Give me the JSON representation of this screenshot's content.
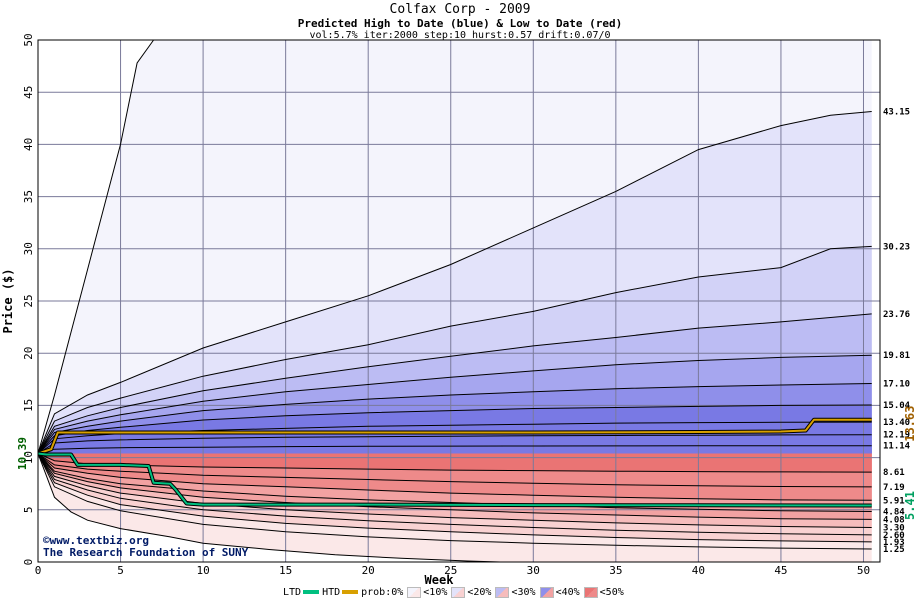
{
  "title": "Colfax Corp - 2009",
  "subtitle": "Predicted High to Date (blue) &  Low to Date (red)",
  "params": "vol:5.7% iter:2000 step:10 hurst:0.57 drift:0.07/0",
  "credit": {
    "line1": "©www.textbiz.org",
    "line2": "The Research Foundation of SUNY"
  },
  "legend": {
    "ltd": "LTD",
    "htd": "HTD",
    "prob": "prob:0%",
    "bins": [
      "<10%",
      "<20%",
      "<30%",
      "<40%",
      "<50%"
    ],
    "ltd_color": "#00c080",
    "htd_color": "#d8a000"
  },
  "colors": {
    "blue_bands": [
      "#f4f4fc",
      "#e3e3fa",
      "#d2d2f7",
      "#bcbcf3",
      "#a6a6ef",
      "#8f8fea",
      "#7979e4"
    ],
    "red_bands": [
      "#fbe8e8",
      "#f9d2d2",
      "#f6bcbc",
      "#f2a2a2",
      "#ee8a8a",
      "#ea7474"
    ],
    "start_label": "#006000",
    "htd_label": "#a06000",
    "ltd_label": "#00a060"
  },
  "chart_data": {
    "type": "area",
    "title": "Colfax Corp - 2009",
    "subtitle": "Predicted High to Date (blue) &  Low to Date (red)",
    "xlabel": "Week",
    "ylabel": "Price ($)",
    "xlim": [
      0,
      51
    ],
    "ylim": [
      0,
      50
    ],
    "xticks": [
      0,
      5,
      10,
      15,
      20,
      25,
      30,
      35,
      40,
      45,
      50
    ],
    "yticks": [
      0,
      5,
      10,
      15,
      20,
      25,
      30,
      35,
      40,
      45,
      50
    ],
    "grid": true,
    "start_price": 10.39,
    "start_label": "10.39",
    "high_quantiles": [
      {
        "label": "43.15",
        "end": 43.15,
        "points": [
          [
            0,
            10.39
          ],
          [
            1,
            14.2
          ],
          [
            3,
            16.0
          ],
          [
            5,
            17.2
          ],
          [
            10,
            20.5
          ],
          [
            15,
            23.0
          ],
          [
            20,
            25.5
          ],
          [
            25,
            28.5
          ],
          [
            30,
            32.0
          ],
          [
            35,
            35.5
          ],
          [
            40,
            39.5
          ],
          [
            45,
            41.8
          ],
          [
            48,
            42.8
          ],
          [
            50.5,
            43.15
          ]
        ]
      },
      {
        "label": "30.23",
        "end": 30.23,
        "points": [
          [
            0,
            10.39
          ],
          [
            1,
            13.5
          ],
          [
            3,
            14.8
          ],
          [
            5,
            15.7
          ],
          [
            10,
            17.8
          ],
          [
            15,
            19.4
          ],
          [
            20,
            20.8
          ],
          [
            25,
            22.6
          ],
          [
            30,
            24.0
          ],
          [
            35,
            25.8
          ],
          [
            40,
            27.3
          ],
          [
            45,
            28.2
          ],
          [
            48,
            30.0
          ],
          [
            50.5,
            30.23
          ]
        ]
      },
      {
        "label": "23.76",
        "end": 23.76,
        "points": [
          [
            0,
            10.39
          ],
          [
            1,
            13.0
          ],
          [
            3,
            14.0
          ],
          [
            5,
            14.8
          ],
          [
            10,
            16.4
          ],
          [
            15,
            17.6
          ],
          [
            20,
            18.7
          ],
          [
            25,
            19.7
          ],
          [
            30,
            20.7
          ],
          [
            35,
            21.5
          ],
          [
            40,
            22.4
          ],
          [
            45,
            23.0
          ],
          [
            50.5,
            23.76
          ]
        ]
      },
      {
        "label": "19.81",
        "end": 19.81,
        "points": [
          [
            0,
            10.39
          ],
          [
            1,
            12.7
          ],
          [
            3,
            13.5
          ],
          [
            5,
            14.1
          ],
          [
            10,
            15.4
          ],
          [
            15,
            16.3
          ],
          [
            20,
            17.0
          ],
          [
            25,
            17.7
          ],
          [
            30,
            18.3
          ],
          [
            35,
            18.9
          ],
          [
            40,
            19.3
          ],
          [
            45,
            19.6
          ],
          [
            50.5,
            19.81
          ]
        ]
      },
      {
        "label": "17.10",
        "end": 17.1,
        "points": [
          [
            0,
            10.39
          ],
          [
            1,
            12.4
          ],
          [
            3,
            13.0
          ],
          [
            5,
            13.5
          ],
          [
            10,
            14.5
          ],
          [
            15,
            15.1
          ],
          [
            20,
            15.6
          ],
          [
            25,
            16.0
          ],
          [
            30,
            16.3
          ],
          [
            35,
            16.6
          ],
          [
            40,
            16.8
          ],
          [
            45,
            16.95
          ],
          [
            50.5,
            17.1
          ]
        ]
      },
      {
        "label": "15.04",
        "end": 15.04,
        "points": [
          [
            0,
            10.39
          ],
          [
            1,
            12.1
          ],
          [
            3,
            12.6
          ],
          [
            5,
            12.9
          ],
          [
            10,
            13.6
          ],
          [
            15,
            14.0
          ],
          [
            20,
            14.3
          ],
          [
            25,
            14.5
          ],
          [
            30,
            14.7
          ],
          [
            35,
            14.8
          ],
          [
            40,
            14.9
          ],
          [
            45,
            15.0
          ],
          [
            50.5,
            15.04
          ]
        ]
      },
      {
        "label": "13.40",
        "end": 13.4,
        "points": [
          [
            0,
            10.39
          ],
          [
            1,
            11.8
          ],
          [
            3,
            12.1
          ],
          [
            5,
            12.3
          ],
          [
            10,
            12.6
          ],
          [
            15,
            12.8
          ],
          [
            20,
            13.0
          ],
          [
            25,
            13.1
          ],
          [
            30,
            13.2
          ],
          [
            35,
            13.3
          ],
          [
            40,
            13.35
          ],
          [
            45,
            13.38
          ],
          [
            50.5,
            13.4
          ]
        ]
      },
      {
        "label": "12.19",
        "end": 12.19,
        "points": [
          [
            0,
            10.39
          ],
          [
            1,
            11.4
          ],
          [
            3,
            11.6
          ],
          [
            5,
            11.7
          ],
          [
            10,
            11.85
          ],
          [
            15,
            11.95
          ],
          [
            20,
            12.0
          ],
          [
            25,
            12.05
          ],
          [
            30,
            12.1
          ],
          [
            35,
            12.12
          ],
          [
            40,
            12.15
          ],
          [
            45,
            12.17
          ],
          [
            50.5,
            12.19
          ]
        ]
      },
      {
        "label": "11.14",
        "end": 11.14,
        "points": [
          [
            0,
            10.39
          ],
          [
            1,
            10.8
          ],
          [
            3,
            10.9
          ],
          [
            5,
            10.95
          ],
          [
            10,
            11.0
          ],
          [
            15,
            11.05
          ],
          [
            20,
            11.08
          ],
          [
            25,
            11.1
          ],
          [
            30,
            11.11
          ],
          [
            35,
            11.12
          ],
          [
            40,
            11.13
          ],
          [
            45,
            11.14
          ],
          [
            50.5,
            11.14
          ]
        ]
      }
    ],
    "max_curve": {
      "points": [
        [
          0,
          10.39
        ],
        [
          1,
          16.0
        ],
        [
          2,
          22.0
        ],
        [
          3,
          28.0
        ],
        [
          4,
          34.0
        ],
        [
          5,
          40.0
        ],
        [
          6,
          47.8
        ],
        [
          7,
          50.0
        ]
      ]
    },
    "low_quantiles": [
      {
        "label": "8.61",
        "end": 8.61,
        "points": [
          [
            0,
            10.39
          ],
          [
            1,
            9.7
          ],
          [
            3,
            9.4
          ],
          [
            5,
            9.3
          ],
          [
            10,
            9.1
          ],
          [
            15,
            9.0
          ],
          [
            20,
            8.9
          ],
          [
            25,
            8.8
          ],
          [
            30,
            8.75
          ],
          [
            35,
            8.7
          ],
          [
            40,
            8.66
          ],
          [
            45,
            8.63
          ],
          [
            50.5,
            8.61
          ]
        ]
      },
      {
        "label": "7.19",
        "end": 7.19,
        "points": [
          [
            0,
            10.39
          ],
          [
            1,
            9.3
          ],
          [
            3,
            8.9
          ],
          [
            5,
            8.7
          ],
          [
            10,
            8.3
          ],
          [
            15,
            8.1
          ],
          [
            20,
            7.9
          ],
          [
            25,
            7.7
          ],
          [
            30,
            7.55
          ],
          [
            35,
            7.4
          ],
          [
            40,
            7.3
          ],
          [
            45,
            7.23
          ],
          [
            50.5,
            7.19
          ]
        ]
      },
      {
        "label": "5.91",
        "end": 5.91,
        "points": [
          [
            0,
            10.39
          ],
          [
            1,
            9.0
          ],
          [
            3,
            8.5
          ],
          [
            5,
            8.1
          ],
          [
            10,
            7.5
          ],
          [
            15,
            7.2
          ],
          [
            20,
            6.9
          ],
          [
            25,
            6.6
          ],
          [
            30,
            6.4
          ],
          [
            35,
            6.2
          ],
          [
            40,
            6.05
          ],
          [
            45,
            5.95
          ],
          [
            50.5,
            5.91
          ]
        ]
      },
      {
        "label": "4.84",
        "end": 4.84,
        "points": [
          [
            0,
            10.39
          ],
          [
            1,
            8.7
          ],
          [
            3,
            8.0
          ],
          [
            5,
            7.5
          ],
          [
            10,
            6.8
          ],
          [
            15,
            6.3
          ],
          [
            20,
            5.95
          ],
          [
            25,
            5.7
          ],
          [
            30,
            5.45
          ],
          [
            35,
            5.2
          ],
          [
            40,
            5.05
          ],
          [
            45,
            4.9
          ],
          [
            50.5,
            4.84
          ]
        ]
      },
      {
        "label": "4.08",
        "end": 4.08,
        "points": [
          [
            0,
            10.39
          ],
          [
            1,
            8.5
          ],
          [
            3,
            7.7
          ],
          [
            5,
            7.1
          ],
          [
            10,
            6.2
          ],
          [
            15,
            5.7
          ],
          [
            20,
            5.3
          ],
          [
            25,
            5.0
          ],
          [
            30,
            4.7
          ],
          [
            35,
            4.5
          ],
          [
            40,
            4.3
          ],
          [
            45,
            4.15
          ],
          [
            50.5,
            4.08
          ]
        ]
      },
      {
        "label": "3.30",
        "end": 3.3,
        "points": [
          [
            0,
            10.39
          ],
          [
            1,
            8.2
          ],
          [
            3,
            7.3
          ],
          [
            5,
            6.6
          ],
          [
            10,
            5.6
          ],
          [
            15,
            5.0
          ],
          [
            20,
            4.6
          ],
          [
            25,
            4.25
          ],
          [
            30,
            4.0
          ],
          [
            35,
            3.75
          ],
          [
            40,
            3.55
          ],
          [
            45,
            3.4
          ],
          [
            50.5,
            3.3
          ]
        ]
      },
      {
        "label": "2.60",
        "end": 2.6,
        "points": [
          [
            0,
            10.39
          ],
          [
            1,
            7.9
          ],
          [
            3,
            6.9
          ],
          [
            5,
            6.1
          ],
          [
            10,
            5.0
          ],
          [
            15,
            4.4
          ],
          [
            20,
            3.95
          ],
          [
            25,
            3.6
          ],
          [
            30,
            3.3
          ],
          [
            35,
            3.05
          ],
          [
            40,
            2.85
          ],
          [
            45,
            2.7
          ],
          [
            50.5,
            2.6
          ]
        ]
      },
      {
        "label": "1.93",
        "end": 1.93,
        "points": [
          [
            0,
            10.39
          ],
          [
            1,
            7.6
          ],
          [
            3,
            6.4
          ],
          [
            5,
            5.5
          ],
          [
            10,
            4.4
          ],
          [
            15,
            3.7
          ],
          [
            20,
            3.25
          ],
          [
            25,
            2.9
          ],
          [
            30,
            2.6
          ],
          [
            35,
            2.35
          ],
          [
            40,
            2.15
          ],
          [
            45,
            2.02
          ],
          [
            50.5,
            1.93
          ]
        ]
      },
      {
        "label": "1.25",
        "end": 1.25,
        "points": [
          [
            0,
            10.39
          ],
          [
            1,
            7.2
          ],
          [
            3,
            5.8
          ],
          [
            5,
            4.9
          ],
          [
            10,
            3.6
          ],
          [
            15,
            2.9
          ],
          [
            20,
            2.4
          ],
          [
            25,
            2.05
          ],
          [
            30,
            1.8
          ],
          [
            35,
            1.6
          ],
          [
            40,
            1.45
          ],
          [
            45,
            1.33
          ],
          [
            50.5,
            1.25
          ]
        ]
      }
    ],
    "min_curve": {
      "points": [
        [
          0,
          10.39
        ],
        [
          1,
          6.2
        ],
        [
          2,
          4.8
        ],
        [
          3,
          4.0
        ],
        [
          5,
          3.2
        ],
        [
          8,
          2.4
        ],
        [
          10,
          1.8
        ],
        [
          14,
          1.2
        ],
        [
          18,
          0.7
        ],
        [
          22,
          0.35
        ],
        [
          26,
          0.1
        ],
        [
          28,
          0.0
        ]
      ]
    },
    "htd": {
      "name": "HTD",
      "end": 13.63,
      "end_label": "13.63",
      "points": [
        [
          0,
          10.39
        ],
        [
          0.8,
          10.8
        ],
        [
          1.2,
          12.4
        ],
        [
          2,
          12.4
        ],
        [
          10,
          12.4
        ],
        [
          20,
          12.4
        ],
        [
          30,
          12.4
        ],
        [
          40,
          12.45
        ],
        [
          45,
          12.5
        ],
        [
          46.5,
          12.6
        ],
        [
          47,
          13.63
        ],
        [
          50.5,
          13.63
        ]
      ]
    },
    "ltd": {
      "name": "LTD",
      "end": 5.41,
      "end_label": "5.41",
      "points": [
        [
          0,
          10.39
        ],
        [
          0.5,
          10.3
        ],
        [
          2,
          10.3
        ],
        [
          2.4,
          9.3
        ],
        [
          5,
          9.3
        ],
        [
          6.7,
          9.2
        ],
        [
          7.0,
          7.6
        ],
        [
          8,
          7.5
        ],
        [
          8.3,
          7.0
        ],
        [
          9,
          5.6
        ],
        [
          10,
          5.5
        ],
        [
          20,
          5.5
        ],
        [
          30,
          5.45
        ],
        [
          40,
          5.43
        ],
        [
          50.5,
          5.41
        ]
      ]
    }
  }
}
